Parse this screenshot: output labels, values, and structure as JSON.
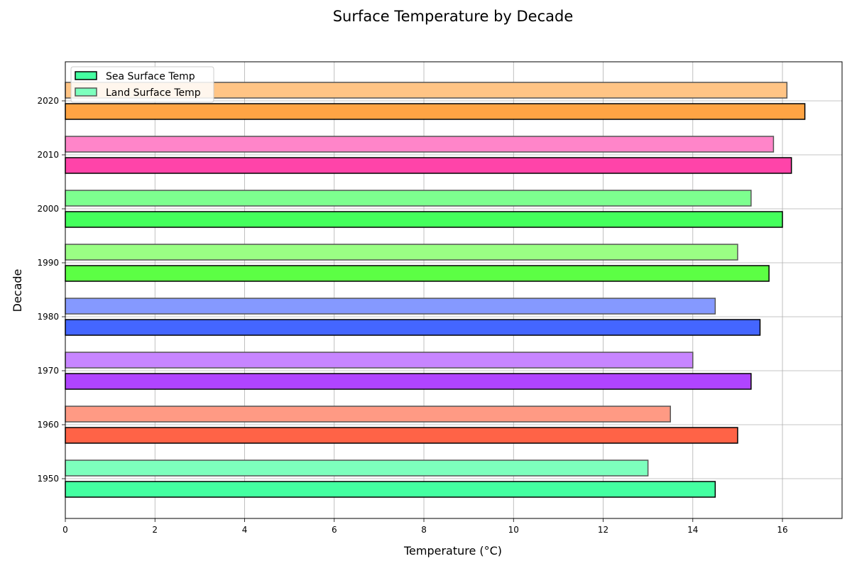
{
  "chart_data": {
    "type": "bar",
    "orientation": "horizontal",
    "title": "Surface Temperature by Decade",
    "xlabel": "Temperature (°C)",
    "ylabel": "Decade",
    "xlim": [
      0,
      17.33
    ],
    "xticks": [
      0,
      2,
      4,
      6,
      8,
      10,
      12,
      14,
      16
    ],
    "grid": true,
    "legend_position": "top-left",
    "categories": [
      "1950",
      "1960",
      "1970",
      "1980",
      "1990",
      "2000",
      "2010",
      "2020"
    ],
    "series": [
      {
        "name": "Sea Surface Temp",
        "values": [
          14.5,
          15.0,
          15.3,
          15.5,
          15.7,
          16.0,
          16.2,
          16.5
        ],
        "colors": [
          "#44ffa1",
          "#ff6347",
          "#b044ff",
          "#4466ff",
          "#5cff44",
          "#44ff5c",
          "#ff44a9",
          "#ffa444"
        ],
        "legend_color": "#44ffa1",
        "edge_color": "#000000"
      },
      {
        "name": "Land Surface Temp",
        "values": [
          13.0,
          13.5,
          14.0,
          14.5,
          15.0,
          15.3,
          15.8,
          16.1
        ],
        "colors": [
          "#7dffbd",
          "#ff9a84",
          "#c785ff",
          "#8599ff",
          "#9aff84",
          "#7dff8f",
          "#ff85c9",
          "#ffc485"
        ],
        "legend_color": "#7dffbd",
        "edge_color": "#555555"
      }
    ]
  }
}
